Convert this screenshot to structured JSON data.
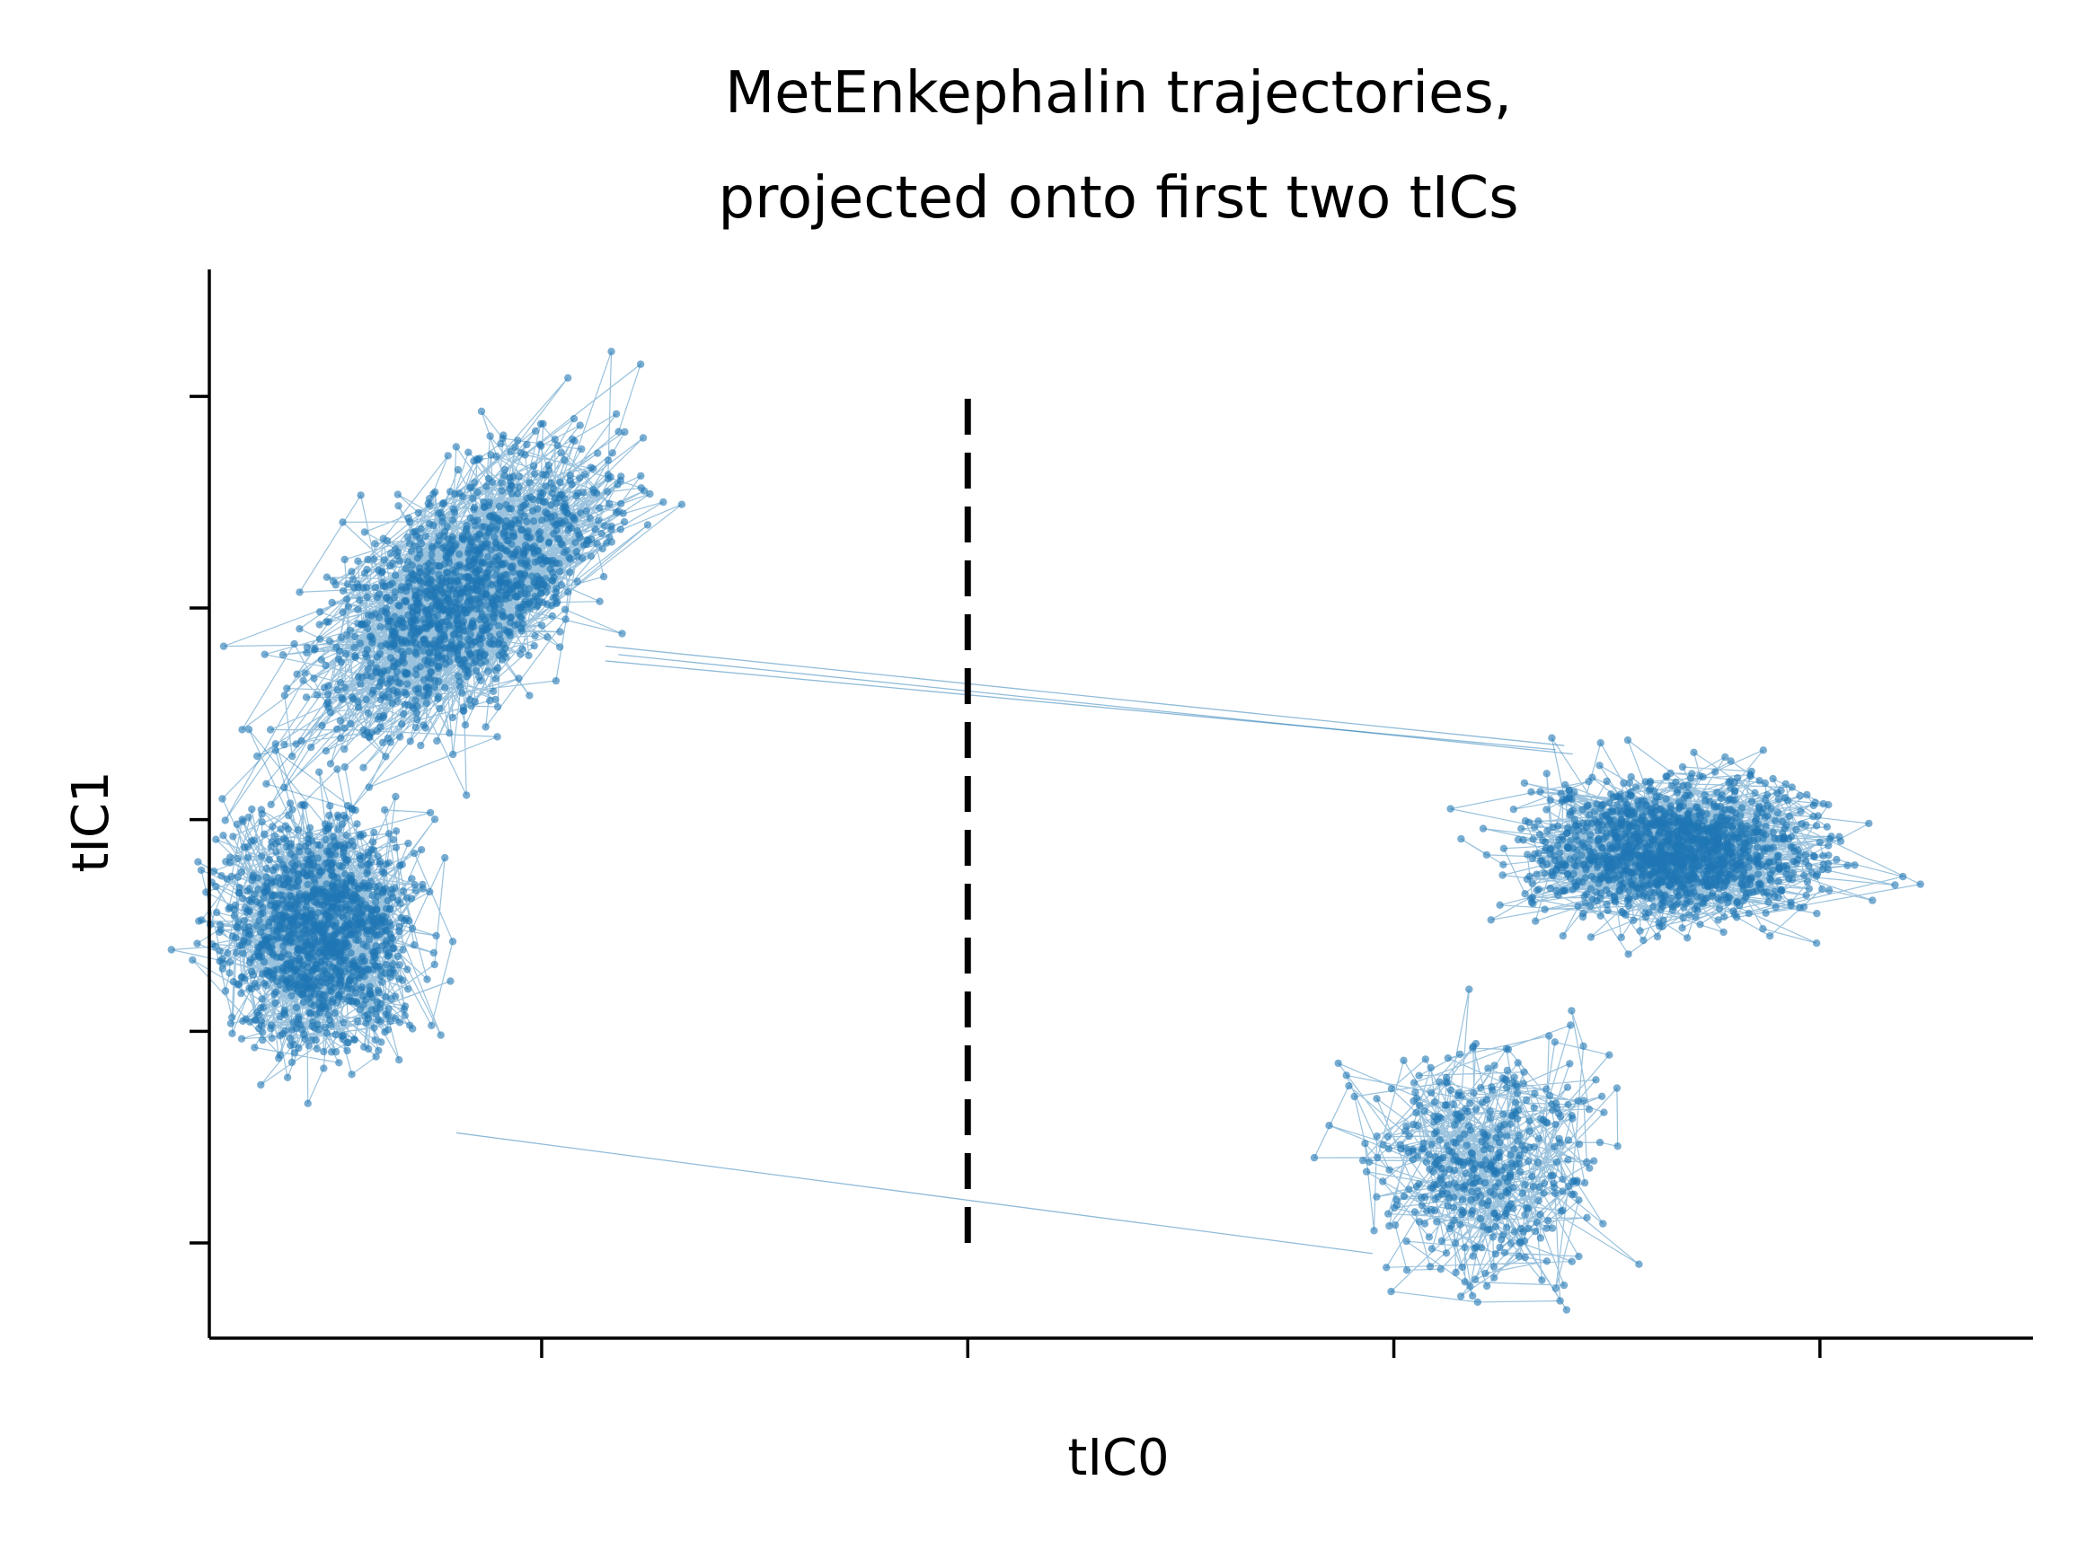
{
  "chart_data": {
    "type": "scatter",
    "title_lines": [
      "MetEnkephalin trajectories,",
      "projected onto first two tICs"
    ],
    "xlabel": "tIC0",
    "ylabel": "tIC1",
    "xlim": [
      -0.78,
      3.5
    ],
    "ylim": [
      -2.45,
      2.6
    ],
    "xticks": [
      0,
      1,
      2,
      3
    ],
    "yticks": [
      -2,
      -1,
      0,
      1,
      2
    ],
    "tick_labels_shown": false,
    "spines": [
      "left",
      "bottom"
    ],
    "grid": false,
    "legend": "none",
    "point_color": "#1f77b4",
    "divider": {
      "style": "dashed",
      "color": "#000000",
      "x": 1.0,
      "y_range": [
        -2,
        2
      ]
    },
    "clusters": [
      {
        "id": "A-upper-left",
        "center": [
          -0.19,
          1.05
        ],
        "spread": [
          0.22,
          0.55
        ],
        "tilt": 0.3,
        "points": 1400
      },
      {
        "id": "B-lower-left",
        "center": [
          -0.52,
          -0.55
        ],
        "spread": [
          0.18,
          0.45
        ],
        "tilt": 0.0,
        "points": 1300
      },
      {
        "id": "C-right-main",
        "center": [
          2.65,
          -0.15
        ],
        "spread": [
          0.27,
          0.25
        ],
        "tilt": 0.0,
        "points": 1500
      },
      {
        "id": "D-right-lower",
        "center": [
          2.2,
          -1.6
        ],
        "spread": [
          0.22,
          0.45
        ],
        "tilt": 0.0,
        "points": 450
      }
    ],
    "transitions": [
      {
        "from": [
          0.15,
          0.82
        ],
        "to": [
          2.4,
          0.35
        ]
      },
      {
        "from": [
          0.15,
          0.75
        ],
        "to": [
          2.38,
          0.33
        ]
      },
      {
        "from": [
          0.18,
          0.78
        ],
        "to": [
          2.42,
          0.31
        ]
      },
      {
        "from": [
          -0.2,
          -1.48
        ],
        "to": [
          1.95,
          -2.05
        ]
      }
    ]
  }
}
